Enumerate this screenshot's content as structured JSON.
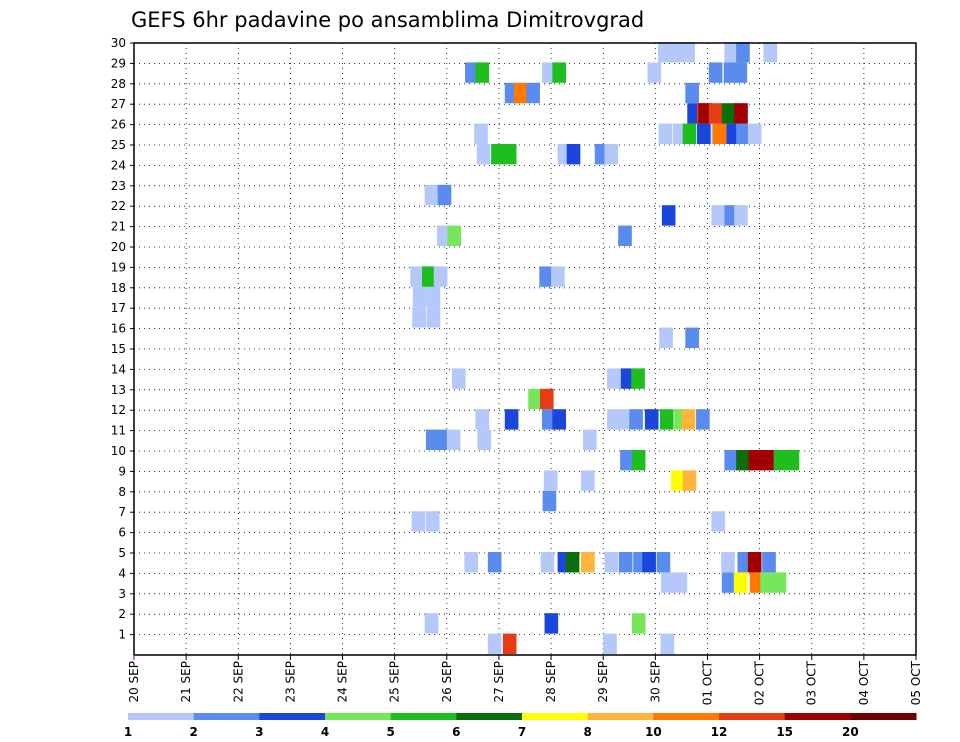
{
  "chart_data": {
    "type": "heatmap",
    "title": "GEFS 6hr padavine po ansamblima Dimitrovgrad",
    "y_members": [
      1,
      30
    ],
    "x_date_labels": [
      "20 SEP",
      "21 SEP",
      "22 SEP",
      "23 SEP",
      "24 SEP",
      "25 SEP",
      "26 SEP",
      "27 SEP",
      "28 SEP",
      "29 SEP",
      "30 SEP",
      "01 OCT",
      "02 OCT",
      "03 OCT",
      "04 OCT",
      "05 OCT"
    ],
    "x_unit": "6-hour steps after 20 SEP 00Z",
    "y_ticks": [
      1,
      2,
      3,
      4,
      5,
      6,
      7,
      8,
      9,
      10,
      11,
      12,
      13,
      14,
      15,
      16,
      17,
      18,
      19,
      20,
      21,
      22,
      23,
      24,
      25,
      26,
      27,
      28,
      29,
      30
    ],
    "grid": true,
    "legend": {
      "placement": "bottom",
      "labels": [
        "1",
        "2",
        "3",
        "4",
        "5",
        "6",
        "7",
        "8",
        "10",
        "12",
        "15",
        "20"
      ],
      "colors": [
        "#b4c8fa",
        "#5a8cf0",
        "#1a46dc",
        "#78e65a",
        "#1ebe1e",
        "#0a6e0a",
        "#ffff00",
        "#ffb43c",
        "#ff7800",
        "#e63c14",
        "#a00000",
        "#6e0000"
      ]
    },
    "cells": [
      [
        1,
        27,
        6,
        "#b4c8fa"
      ],
      [
        1,
        28,
        12,
        "#e63c14"
      ],
      [
        1,
        36,
        0,
        "#b4c8fa"
      ],
      [
        1,
        40,
        16,
        "#b4c8fa"
      ],
      [
        2,
        22,
        12,
        "#b4c8fa"
      ],
      [
        2,
        31,
        20,
        "#1a46dc"
      ],
      [
        2,
        38,
        8,
        "#78e65a"
      ],
      [
        4,
        40,
        18,
        "#b4c8fa"
      ],
      [
        4,
        41,
        16,
        "#b4c8fa"
      ],
      [
        4,
        45,
        4,
        "#5a8cf0"
      ],
      [
        4,
        46,
        1,
        "#ffff00"
      ],
      [
        4,
        47,
        10,
        "#ff7800"
      ],
      [
        4,
        48,
        2,
        "#78e65a"
      ],
      [
        4,
        49,
        0,
        "#78e65a"
      ],
      [
        5,
        25,
        14,
        "#b4c8fa"
      ],
      [
        5,
        27,
        6,
        "#5a8cf0"
      ],
      [
        5,
        31,
        8,
        "#b4c8fa"
      ],
      [
        5,
        32,
        20,
        "#1a46dc"
      ],
      [
        5,
        33,
        5,
        "#0a6e0a"
      ],
      [
        5,
        34,
        12,
        "#ffb43c"
      ],
      [
        5,
        36,
        4,
        "#b4c8fa"
      ],
      [
        5,
        37,
        8,
        "#5a8cf0"
      ],
      [
        5,
        38,
        12,
        "#5a8cf0"
      ],
      [
        5,
        39,
        0,
        "#1a46dc"
      ],
      [
        5,
        40,
        4,
        "#5a8cf0"
      ],
      [
        5,
        45,
        2,
        "#b4c8fa"
      ],
      [
        5,
        46,
        12,
        "#5a8cf0"
      ],
      [
        5,
        47,
        4,
        "#a00000"
      ],
      [
        5,
        48,
        8,
        "#5a8cf0"
      ],
      [
        7,
        21,
        12,
        "#b4c8fa"
      ],
      [
        7,
        22,
        16,
        "#b4c8fa"
      ],
      [
        7,
        44,
        12,
        "#b4c8fa"
      ],
      [
        8,
        31,
        14,
        "#5a8cf0"
      ],
      [
        9,
        31,
        18,
        "#b4c8fa"
      ],
      [
        9,
        34,
        12,
        "#b4c8fa"
      ],
      [
        9,
        41,
        8,
        "#ffff00"
      ],
      [
        9,
        42,
        4,
        "#ffb43c"
      ],
      [
        10,
        37,
        12,
        "#5a8cf0"
      ],
      [
        10,
        38,
        8,
        "#1ebe1e"
      ],
      [
        10,
        45,
        12,
        "#5a8cf0"
      ],
      [
        10,
        46,
        8,
        "#0a6e0a"
      ],
      [
        10,
        47,
        6,
        "#a00000"
      ],
      [
        10,
        48,
        2,
        "#a00000"
      ],
      [
        10,
        49,
        4,
        "#1ebe1e"
      ],
      [
        10,
        50,
        0,
        "#1ebe1e"
      ],
      [
        11,
        22,
        16,
        "#5a8cf0"
      ],
      [
        11,
        23,
        8,
        "#5a8cf0"
      ],
      [
        11,
        24,
        0,
        "#b4c8fa"
      ],
      [
        11,
        26,
        14,
        "#b4c8fa"
      ],
      [
        11,
        34,
        18,
        "#b4c8fa"
      ],
      [
        12,
        26,
        8,
        "#b4c8fa"
      ],
      [
        12,
        28,
        18,
        "#1a46dc"
      ],
      [
        12,
        31,
        12,
        "#5a8cf0"
      ],
      [
        12,
        32,
        4,
        "#1a46dc"
      ],
      [
        12,
        36,
        12,
        "#b4c8fa"
      ],
      [
        12,
        37,
        12,
        "#b4c8fa"
      ],
      [
        12,
        38,
        0,
        "#5a8cf0"
      ],
      [
        12,
        39,
        8,
        "#1a46dc"
      ],
      [
        12,
        40,
        14,
        "#1ebe1e"
      ],
      [
        12,
        41,
        18,
        "#78e65a"
      ],
      [
        12,
        42,
        1,
        "#ffb43c"
      ],
      [
        12,
        43,
        5,
        "#5a8cf0"
      ],
      [
        13,
        30,
        10,
        "#78e65a"
      ],
      [
        13,
        31,
        6,
        "#e63c14"
      ],
      [
        14,
        24,
        16,
        "#b4c8fa"
      ],
      [
        14,
        36,
        12,
        "#b4c8fa"
      ],
      [
        14,
        37,
        14,
        "#1a46dc"
      ],
      [
        14,
        38,
        6,
        "#1ebe1e"
      ],
      [
        16,
        40,
        12,
        "#b4c8fa"
      ],
      [
        16,
        42,
        12,
        "#5a8cf0"
      ],
      [
        17,
        21,
        14,
        "#b4c8fa"
      ],
      [
        17,
        22,
        18,
        "#b4c8fa"
      ],
      [
        18,
        21,
        16,
        "#b4c8fa"
      ],
      [
        18,
        22,
        18,
        "#b4c8fa"
      ],
      [
        19,
        21,
        8,
        "#b4c8fa"
      ],
      [
        19,
        22,
        4,
        "#1ebe1e"
      ],
      [
        19,
        23,
        0,
        "#b4c8fa"
      ],
      [
        19,
        31,
        4,
        "#5a8cf0"
      ],
      [
        19,
        32,
        0,
        "#b4c8fa"
      ],
      [
        21,
        23,
        10,
        "#b4c8fa"
      ],
      [
        21,
        24,
        2,
        "#78e65a"
      ],
      [
        21,
        37,
        6,
        "#5a8cf0"
      ],
      [
        22,
        40,
        20,
        "#1a46dc"
      ],
      [
        22,
        44,
        12,
        "#b4c8fa"
      ],
      [
        22,
        45,
        12,
        "#5a8cf0"
      ],
      [
        22,
        46,
        2,
        "#b4c8fa"
      ],
      [
        23,
        22,
        12,
        "#b4c8fa"
      ],
      [
        23,
        23,
        12,
        "#5a8cf0"
      ],
      [
        25,
        26,
        12,
        "#b4c8fa"
      ],
      [
        25,
        27,
        16,
        "#1ebe1e"
      ],
      [
        25,
        28,
        12,
        "#1ebe1e"
      ],
      [
        25,
        32,
        20,
        "#b4c8fa"
      ],
      [
        25,
        33,
        8,
        "#1a46dc"
      ],
      [
        25,
        35,
        14,
        "#5a8cf0"
      ],
      [
        25,
        36,
        4,
        "#b4c8fa"
      ],
      [
        26,
        26,
        4,
        "#b4c8fa"
      ],
      [
        26,
        40,
        10,
        "#b4c8fa"
      ],
      [
        26,
        41,
        14,
        "#b4c8fa"
      ],
      [
        26,
        42,
        4,
        "#1ebe1e"
      ],
      [
        26,
        43,
        8,
        "#1a46dc"
      ],
      [
        26,
        44,
        12,
        "#b4c8fa"
      ],
      [
        26,
        44,
        16,
        "#ff7800"
      ],
      [
        26,
        45,
        18,
        "#1a46dc"
      ],
      [
        26,
        46,
        8,
        "#5a8cf0"
      ],
      [
        26,
        47,
        4,
        "#b4c8fa"
      ],
      [
        27,
        42,
        18,
        "#1a46dc"
      ],
      [
        27,
        43,
        8,
        "#e63c14"
      ],
      [
        27,
        43,
        12,
        "#a00000"
      ],
      [
        27,
        44,
        4,
        "#e63c14"
      ],
      [
        27,
        45,
        4,
        "#0a6e0a"
      ],
      [
        27,
        46,
        2,
        "#a00000"
      ],
      [
        28,
        28,
        18,
        "#5a8cf0"
      ],
      [
        28,
        29,
        6,
        "#ff7800"
      ],
      [
        28,
        30,
        4,
        "#5a8cf0"
      ],
      [
        28,
        42,
        12,
        "#5a8cf0"
      ],
      [
        29,
        25,
        16,
        "#5a8cf0"
      ],
      [
        29,
        26,
        8,
        "#1ebe1e"
      ],
      [
        29,
        31,
        12,
        "#b4c8fa"
      ],
      [
        29,
        32,
        4,
        "#1ebe1e"
      ],
      [
        29,
        39,
        16,
        "#b4c8fa"
      ],
      [
        29,
        44,
        4,
        "#5a8cf0"
      ],
      [
        29,
        45,
        10,
        "#5a8cf0"
      ],
      [
        29,
        46,
        0,
        "#5a8cf0"
      ],
      [
        30,
        40,
        8,
        "#b4c8fa"
      ],
      [
        30,
        41,
        8,
        "#b4c8fa"
      ],
      [
        30,
        42,
        0,
        "#b4c8fa"
      ],
      [
        30,
        45,
        12,
        "#b4c8fa"
      ],
      [
        30,
        46,
        8,
        "#5a8cf0"
      ],
      [
        30,
        48,
        12,
        "#b4c8fa"
      ]
    ]
  }
}
